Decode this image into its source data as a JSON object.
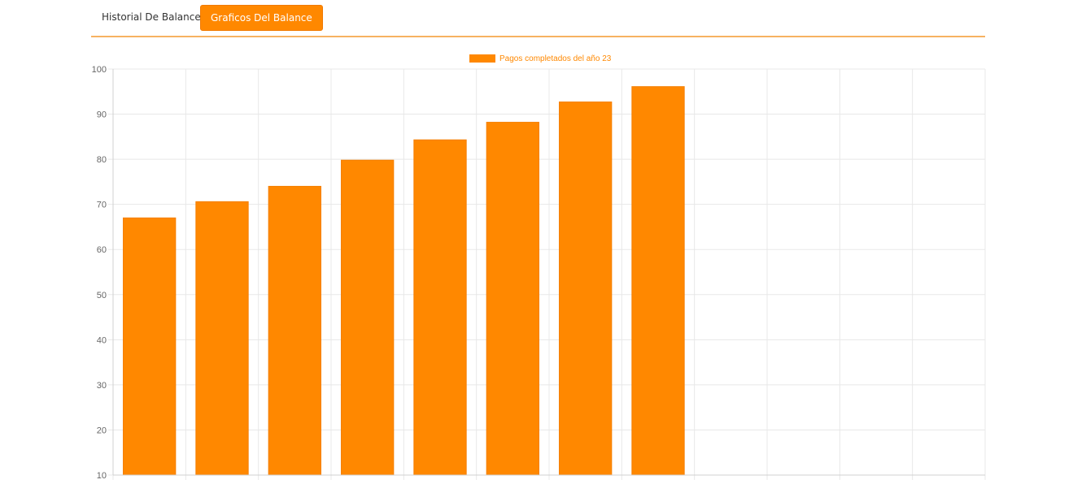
{
  "tabs": [
    {
      "label": "Historial De Balance",
      "active": false
    },
    {
      "label": "Graficos Del Balance",
      "active": true
    }
  ],
  "colors": {
    "accent": "#ff8800",
    "bar": "#ff8800",
    "grid": "#e8e8e8",
    "tab_border": "#f7b262"
  },
  "chart_data": {
    "type": "bar",
    "categories": [
      "",
      "",
      "",
      "",
      "",
      "",
      "",
      "",
      "",
      "",
      "",
      ""
    ],
    "series": [
      {
        "name": "Pagos completados del año 23",
        "values": [
          67,
          70.6,
          74,
          79.8,
          84.3,
          88.2,
          92.7,
          96.1,
          null,
          null,
          null,
          null
        ]
      }
    ],
    "ylim": [
      10,
      100
    ],
    "yticks": [
      10,
      20,
      30,
      40,
      50,
      60,
      70,
      80,
      90,
      100
    ],
    "grid": true,
    "legend": "top-center"
  }
}
